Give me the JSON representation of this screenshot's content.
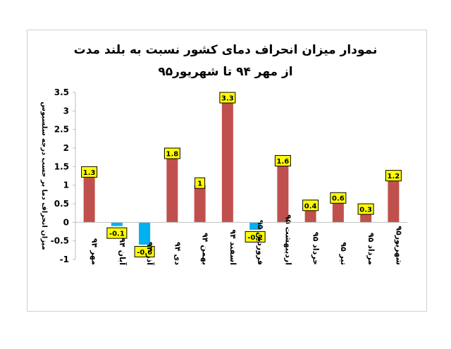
{
  "title_line1": "نمودار میزان انحراف دمای کشور نسبت به بلند مدت",
  "title_line2": "از مهر ۹۴ تا شهریور۹۵",
  "chart_data": {
    "type": "bar",
    "title": "نمودار میزان انحراف دمای کشور نسبت به بلند مدت از مهر ۹۴ تا شهریور۹۵",
    "ylabel": "میزان انحراف دما بر حسب درجه سلسیوس",
    "xlabel": "",
    "categories": [
      "مهر ۹۴",
      "آبان ۹۴",
      "آذر ۹۴",
      "دی ۹۴",
      "بهمن ۹۴",
      "اسفند ۹۴",
      "فروردین ۹۵",
      "اردیبهشت ۹۵",
      "خرداد ۹۵",
      "تیر ۹۵",
      "مرداد ۹۵",
      "شهریور۹۵"
    ],
    "values": [
      1.3,
      -0.1,
      -0.6,
      1.8,
      1,
      3.3,
      -0.2,
      1.6,
      0.4,
      0.6,
      0.3,
      1.2
    ],
    "data_labels": [
      "1.3",
      "-0.1",
      "-0.6",
      "1.8",
      "1",
      "3.3",
      "-0.2",
      "1.6",
      "0.4",
      "0.6",
      "0.3",
      "1.2"
    ],
    "yticks": [
      "-1",
      "-0.5",
      "0",
      "0.5",
      "1",
      "1.5",
      "2",
      "2.5",
      "3",
      "3.5"
    ],
    "ylim": [
      -1,
      3.5
    ],
    "grid": false,
    "colors": {
      "positive": "#c0504d",
      "negative": "#00b0f0",
      "label_bg": "#ffff00",
      "axis": "#bfbfbf"
    }
  }
}
